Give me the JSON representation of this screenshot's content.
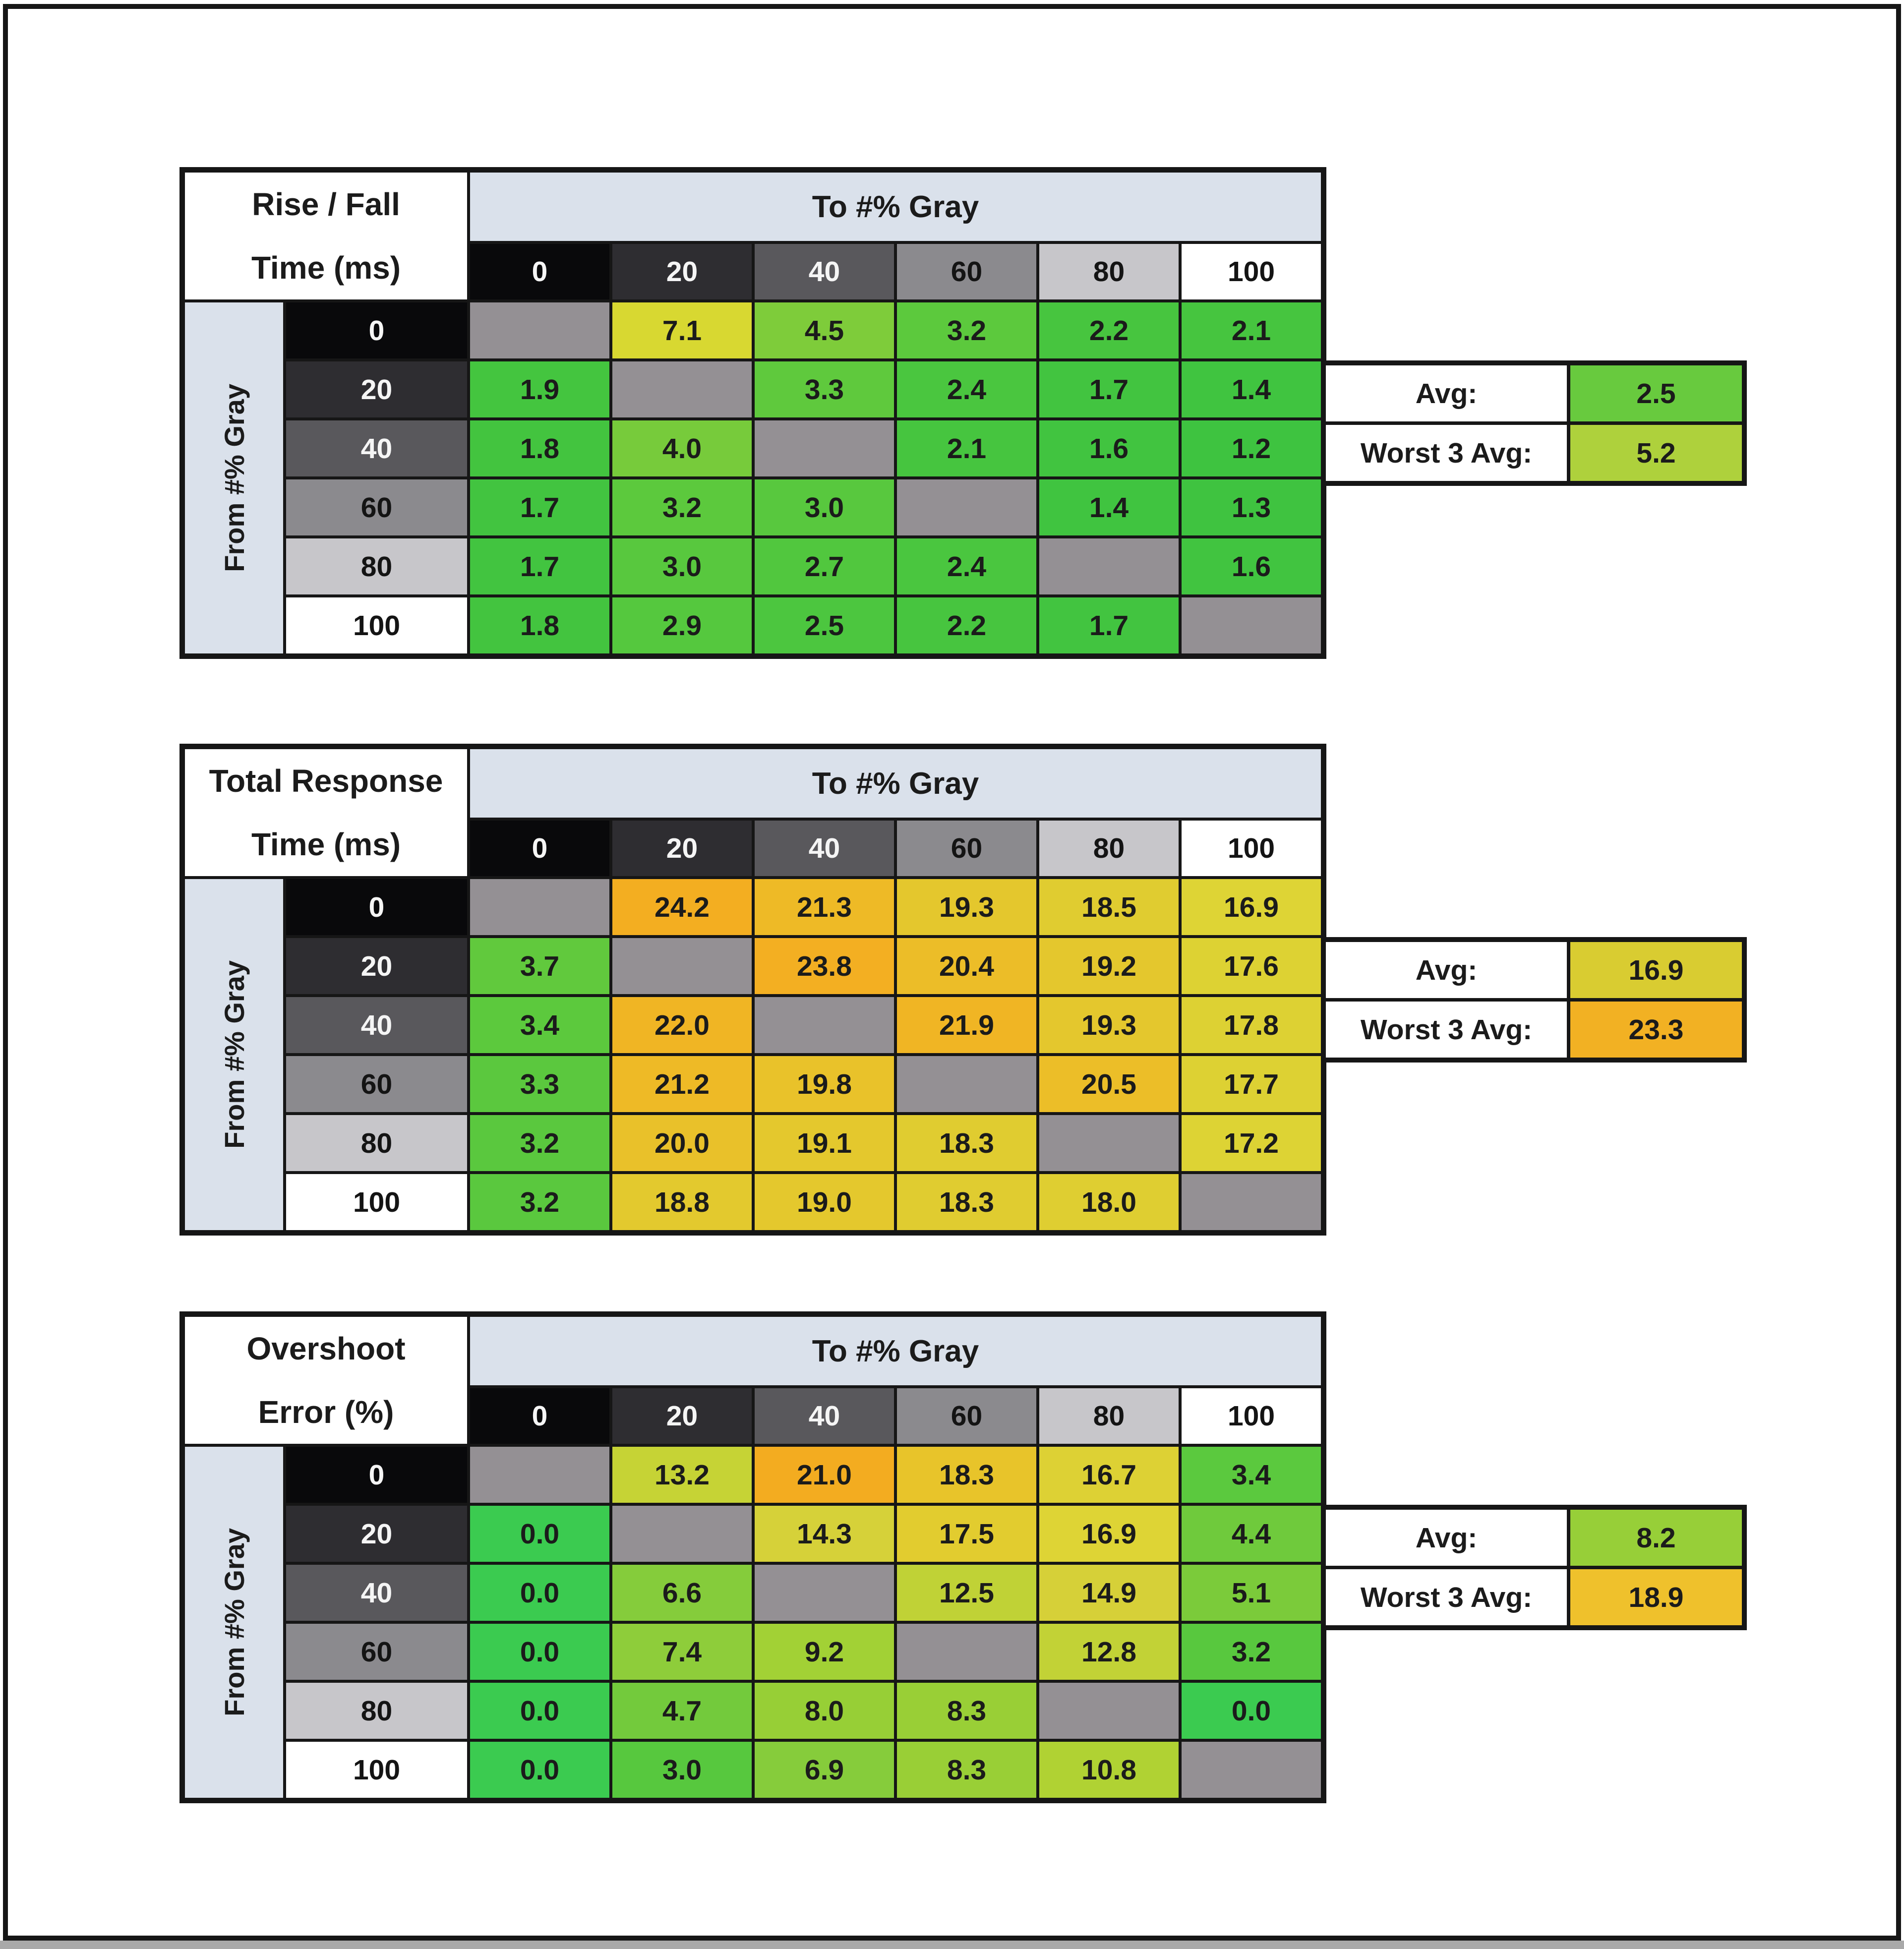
{
  "page": {
    "background": "#ffffff",
    "frame_color": "#161616",
    "bottom_strip_color": "#a9a9a9",
    "grid_line_color": "#161616"
  },
  "shared": {
    "to_axis_label": "To #% Gray",
    "from_axis_label": "From #% Gray",
    "col_headers": [
      "0",
      "20",
      "40",
      "60",
      "80",
      "100"
    ],
    "row_headers": [
      "0",
      "20",
      "40",
      "60",
      "80",
      "100"
    ],
    "header_bg": [
      "#09090b",
      "#2e2d31",
      "#59585c",
      "#8b8a8e",
      "#c7c6ca",
      "#ffffff"
    ],
    "header_fg": [
      "#f5f5f5",
      "#f5f5f5",
      "#f5f5f5",
      "#141414",
      "#141414",
      "#141414"
    ],
    "band_color": "#dae1eb",
    "diagonal_color": "#949094",
    "avg_label": "Avg:",
    "worst_label": "Worst 3 Avg:"
  },
  "chart_data": [
    {
      "type": "heatmap",
      "title": "Rise / Fall Time (ms)",
      "title_lines": [
        "Rise / Fall",
        "Time (ms)"
      ],
      "xlabel": "To #% Gray",
      "ylabel": "From #% Gray",
      "x_ticks": [
        "0",
        "20",
        "40",
        "60",
        "80",
        "100"
      ],
      "y_ticks": [
        "0",
        "20",
        "40",
        "60",
        "80",
        "100"
      ],
      "values": [
        [
          null,
          7.1,
          4.5,
          3.2,
          2.2,
          2.1
        ],
        [
          1.9,
          null,
          3.3,
          2.4,
          1.7,
          1.4
        ],
        [
          1.8,
          4.0,
          null,
          2.1,
          1.6,
          1.2
        ],
        [
          1.7,
          3.2,
          3.0,
          null,
          1.4,
          1.3
        ],
        [
          1.7,
          3.0,
          2.7,
          2.4,
          null,
          1.6
        ],
        [
          1.8,
          2.9,
          2.5,
          2.2,
          1.7,
          null
        ]
      ],
      "cell_colors": [
        [
          null,
          "#d8d831",
          "#7ecc3a",
          "#5cc93d",
          "#47c53f",
          "#46c53f"
        ],
        [
          "#44c53f",
          null,
          "#5fc93d",
          "#4ac63f",
          "#42c440",
          "#40c440"
        ],
        [
          "#43c43f",
          "#77cb3b",
          null,
          "#46c53f",
          "#41c440",
          "#3ec340"
        ],
        [
          "#42c440",
          "#5cc93d",
          "#58c83e",
          null,
          "#40c440",
          "#3fc340"
        ],
        [
          "#42c440",
          "#58c83e",
          "#51c73e",
          "#4ac63f",
          null,
          "#41c440"
        ],
        [
          "#43c43f",
          "#55c83e",
          "#4cc63f",
          "#47c53f",
          "#42c440",
          null
        ]
      ],
      "avg": {
        "label": "Avg:",
        "value": 2.5,
        "color": "#68ca3e"
      },
      "worst3": {
        "label": "Worst 3 Avg:",
        "value": 5.2,
        "color": "#aed13c"
      }
    },
    {
      "type": "heatmap",
      "title": "Total Response Time (ms)",
      "title_lines": [
        "Total Response",
        "Time (ms)"
      ],
      "xlabel": "To #% Gray",
      "ylabel": "From #% Gray",
      "x_ticks": [
        "0",
        "20",
        "40",
        "60",
        "80",
        "100"
      ],
      "y_ticks": [
        "0",
        "20",
        "40",
        "60",
        "80",
        "100"
      ],
      "values": [
        [
          null,
          24.2,
          21.3,
          19.3,
          18.5,
          16.9
        ],
        [
          3.7,
          null,
          23.8,
          20.4,
          19.2,
          17.6
        ],
        [
          3.4,
          22.0,
          null,
          21.9,
          19.3,
          17.8
        ],
        [
          3.3,
          21.2,
          19.8,
          null,
          20.5,
          17.7
        ],
        [
          3.2,
          20.0,
          19.1,
          18.3,
          null,
          17.2
        ],
        [
          3.2,
          18.8,
          19.0,
          18.3,
          18.0,
          null
        ]
      ],
      "cell_colors": [
        [
          null,
          "#f3ae21",
          "#eeba26",
          "#e4c72d",
          "#e0cc30",
          "#ded435"
        ],
        [
          "#61c93d",
          null,
          "#f3af22",
          "#ecbd28",
          "#e4c72d",
          "#ddd233"
        ],
        [
          "#5cc93d",
          "#f0b524",
          null,
          "#f0b524",
          "#e4c72d",
          "#ddd133"
        ],
        [
          "#5bc83e",
          "#eeba26",
          "#e9c22a",
          null,
          "#ecbe28",
          "#ddd133"
        ],
        [
          "#5ac83e",
          "#e9c12a",
          "#e4c82d",
          "#e0cc30",
          null,
          "#ddd334"
        ],
        [
          "#5ac83e",
          "#e3c92e",
          "#e4c82d",
          "#e0cc30",
          "#dfce31",
          null
        ]
      ],
      "avg": {
        "label": "Avg:",
        "value": 16.9,
        "color": "#d9cc31"
      },
      "worst3": {
        "label": "Worst 3 Avg:",
        "value": 23.3,
        "color": "#f2b123"
      }
    },
    {
      "type": "heatmap",
      "title": "Overshoot Error (%)",
      "title_lines": [
        "Overshoot",
        "Error (%)"
      ],
      "xlabel": "To #% Gray",
      "ylabel": "From #% Gray",
      "x_ticks": [
        "0",
        "20",
        "40",
        "60",
        "80",
        "100"
      ],
      "y_ticks": [
        "0",
        "20",
        "40",
        "60",
        "80",
        "100"
      ],
      "values": [
        [
          null,
          13.2,
          21.0,
          18.3,
          16.7,
          3.4
        ],
        [
          0.0,
          null,
          14.3,
          17.5,
          16.9,
          4.4
        ],
        [
          0.0,
          6.6,
          null,
          12.5,
          14.9,
          5.1
        ],
        [
          0.0,
          7.4,
          9.2,
          null,
          12.8,
          3.2
        ],
        [
          0.0,
          4.7,
          8.0,
          8.3,
          null,
          0.0
        ],
        [
          0.0,
          3.0,
          6.9,
          8.3,
          10.8,
          null
        ]
      ],
      "cell_colors": [
        [
          null,
          "#c6d335",
          "#f3ac20",
          "#e8c42a",
          "#ddd134",
          "#5bc93e"
        ],
        [
          "#3bcb50",
          null,
          "#d6d139",
          "#e2cc2f",
          "#ded435",
          "#6fca3c"
        ],
        [
          "#3bcb50",
          "#85cc3b",
          null,
          "#c0d236",
          "#d6d038",
          "#7bcb3a"
        ],
        [
          "#3bcb50",
          "#8ecd3a",
          "#a2d135",
          null,
          "#c2d236",
          "#58c83e"
        ],
        [
          "#3bcb50",
          "#73ca3c",
          "#97cf36",
          "#99cf36",
          null,
          "#3bcb50"
        ],
        [
          "#3bcb50",
          "#57c83e",
          "#86cc3b",
          "#99cf36",
          "#b0d233",
          null
        ]
      ],
      "avg": {
        "label": "Avg:",
        "value": 8.2,
        "color": "#97cf38"
      },
      "worst3": {
        "label": "Worst 3 Avg:",
        "value": 18.9,
        "color": "#efc12c"
      }
    }
  ]
}
